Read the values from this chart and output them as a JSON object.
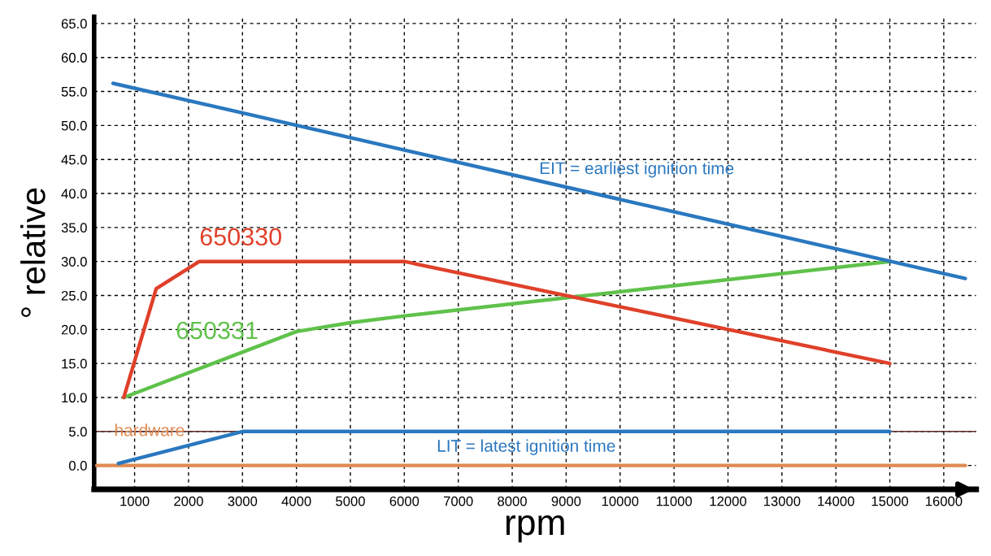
{
  "chart_data": {
    "type": "line",
    "xlabel": "rpm",
    "ylabel": "° relative",
    "xlim": [
      250,
      16600
    ],
    "ylim": [
      -3.5,
      66
    ],
    "xticks": [
      1000,
      2000,
      3000,
      4000,
      5000,
      6000,
      7000,
      8000,
      9000,
      10000,
      11000,
      12000,
      13000,
      14000,
      15000,
      16000
    ],
    "yticks": [
      {
        "value": 0,
        "label": "0.0"
      },
      {
        "value": 5,
        "label": "5.0"
      },
      {
        "value": 10,
        "label": "10.0"
      },
      {
        "value": 15,
        "label": "15.0"
      },
      {
        "value": 20,
        "label": "20.0"
      },
      {
        "value": 25,
        "label": "25.0"
      },
      {
        "value": 30,
        "label": "30.0"
      },
      {
        "value": 35,
        "label": "35.0"
      },
      {
        "value": 40,
        "label": "40.0"
      },
      {
        "value": 45,
        "label": "45.0"
      },
      {
        "value": 50,
        "label": "50.0"
      },
      {
        "value": 55,
        "label": "55.0"
      },
      {
        "value": 60,
        "label": "60.0"
      },
      {
        "value": 65,
        "label": "65.0"
      }
    ],
    "grid": true,
    "line_style": "solid",
    "marker": "none",
    "ref_lines": [
      {
        "axis": "y",
        "value": 5,
        "color": "#5a2a2a"
      }
    ],
    "series": [
      {
        "name": "hardware",
        "color": "#e08a50",
        "x": [
          300,
          16400
        ],
        "values": [
          0,
          0
        ]
      },
      {
        "name": "LIT = latest ignition time",
        "color": "#2a78c0",
        "x": [
          700,
          3000,
          15000
        ],
        "values": [
          0.3,
          5,
          5
        ]
      },
      {
        "name": "650331",
        "color": "#5fc24a",
        "x": [
          800,
          4000,
          5000,
          6000,
          15000
        ],
        "values": [
          10,
          19.7,
          21,
          22,
          30
        ]
      },
      {
        "name": "650330",
        "color": "#e0402a",
        "x": [
          800,
          1400,
          2200,
          6000,
          15000
        ],
        "values": [
          10,
          26,
          30,
          30,
          15
        ]
      },
      {
        "name": "EIT = earliest ignition time",
        "color": "#2a78c0",
        "x": [
          600,
          16400
        ],
        "values": [
          56.2,
          27.5
        ]
      }
    ]
  }
}
